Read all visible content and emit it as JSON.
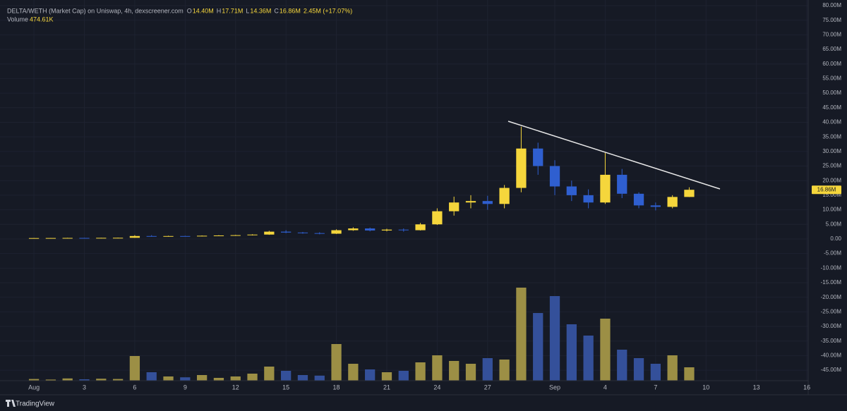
{
  "chart_data": {
    "type": "candlestick",
    "title": "DELTA/WETH (Market Cap) on Uniswap, 4h, dexscreener.com",
    "ohlc_legend": [
      {
        "key": "O",
        "text": "14.40M"
      },
      {
        "key": "H",
        "text": "17.71M"
      },
      {
        "key": "L",
        "text": "14.36M"
      },
      {
        "key": "C",
        "text": "16.86M"
      }
    ],
    "change_text": "2.45M (+17.07%)",
    "volume_legend": {
      "name": "Volume",
      "text": "474.61K"
    },
    "last_price_label": "16.86M",
    "brand": "TradingView",
    "x": [
      0,
      1,
      2,
      3,
      4,
      5,
      6,
      7,
      8,
      9,
      10,
      11,
      12,
      13,
      14,
      15,
      16,
      17,
      18,
      19,
      20,
      21,
      22,
      23,
      24,
      25,
      26,
      27,
      28,
      29,
      30,
      31,
      32,
      33,
      34,
      35,
      36,
      37,
      38,
      39
    ],
    "open": [
      0.3,
      0.3,
      0.32,
      0.35,
      0.33,
      0.38,
      0.4,
      1.0,
      0.9,
      1.0,
      0.95,
      1.1,
      1.2,
      1.3,
      1.5,
      2.5,
      2.2,
      2.0,
      1.8,
      3.0,
      3.6,
      2.9,
      3.2,
      3.0,
      5.0,
      9.5,
      12.5,
      13.0,
      12.0,
      17.5,
      31,
      25,
      18,
      15,
      12.5,
      22,
      15.5,
      11.5,
      11,
      14.4
    ],
    "high": [
      0.35,
      0.35,
      0.4,
      0.4,
      0.4,
      0.45,
      1.3,
      1.3,
      1.1,
      1.1,
      1.2,
      1.3,
      1.4,
      1.6,
      2.8,
      3.0,
      2.4,
      2.3,
      3.3,
      4.0,
      3.9,
      3.5,
      3.6,
      5.5,
      10.5,
      14.5,
      15.0,
      14.8,
      18.5,
      38.5,
      33,
      27,
      20,
      17,
      29.5,
      24,
      16,
      12.5,
      15,
      17.71
    ],
    "low": [
      0.25,
      0.25,
      0.28,
      0.3,
      0.3,
      0.33,
      0.38,
      0.8,
      0.8,
      0.9,
      0.9,
      1.0,
      1.1,
      1.2,
      1.4,
      2.0,
      1.8,
      1.6,
      1.7,
      2.8,
      2.6,
      2.6,
      2.5,
      2.9,
      4.8,
      8.0,
      10.5,
      10.0,
      10.5,
      16,
      22,
      15,
      13,
      10.5,
      12,
      14,
      10.5,
      9.8,
      10.5,
      14.36
    ],
    "close": [
      0.3,
      0.32,
      0.35,
      0.33,
      0.38,
      0.4,
      1.0,
      0.9,
      1.0,
      0.95,
      1.1,
      1.2,
      1.3,
      1.5,
      2.5,
      2.2,
      2.0,
      1.8,
      3.0,
      3.6,
      2.9,
      3.2,
      3.0,
      5.0,
      9.5,
      12.5,
      13.0,
      12.0,
      17.5,
      31,
      25,
      18,
      15,
      12.5,
      22,
      15.5,
      11.5,
      11,
      14.4,
      16.86
    ],
    "volume": [
      60,
      40,
      80,
      50,
      70,
      60,
      875,
      300,
      150,
      120,
      200,
      100,
      150,
      250,
      500,
      350,
      200,
      180,
      1300,
      600,
      400,
      300,
      350,
      650,
      900,
      700,
      600,
      800,
      750,
      3300,
      2400,
      3000,
      2000,
      1600,
      2200,
      1100,
      800,
      600,
      900,
      474.61
    ],
    "up_color": "#f5d63c",
    "down_color": "#2f5fd0",
    "volume_up_color": "#9c8f45",
    "volume_down_color": "#34509a",
    "xlim": [
      -2.02,
      46.08
    ],
    "xticks": [
      {
        "value": 0,
        "label": "Aug"
      },
      3,
      6,
      9,
      12,
      15,
      18,
      21,
      24,
      27,
      {
        "value": 31,
        "label": "Sep"
      },
      {
        "value": 34,
        "label": "4"
      },
      {
        "value": 37,
        "label": "7"
      },
      {
        "value": 40,
        "label": "10"
      },
      {
        "value": 43,
        "label": "13"
      },
      {
        "value": 46,
        "label": "16"
      }
    ],
    "ylim": [
      -48.6,
      81.93
    ],
    "yticks": [
      {
        "value": 80,
        "label": "80.00M"
      },
      {
        "value": 75,
        "label": "75.00M"
      },
      {
        "value": 70,
        "label": "70.00M"
      },
      {
        "value": 65,
        "label": "65.00M"
      },
      {
        "value": 60,
        "label": "60.00M"
      },
      {
        "value": 55,
        "label": "55.00M"
      },
      {
        "value": 50,
        "label": "50.00M"
      },
      {
        "value": 45,
        "label": "45.00M"
      },
      {
        "value": 40,
        "label": "40.00M"
      },
      {
        "value": 35,
        "label": "35.00M"
      },
      {
        "value": 30,
        "label": "30.00M"
      },
      {
        "value": 25,
        "label": "25.00M"
      },
      {
        "value": 20,
        "label": "20.00M"
      },
      {
        "value": 15,
        "label": "15.00M"
      },
      {
        "value": 10,
        "label": "10.00M"
      },
      {
        "value": 5,
        "label": "5.00M"
      },
      {
        "value": 0,
        "label": "0.00"
      },
      {
        "value": -5,
        "label": "-5.00M"
      },
      {
        "value": -10,
        "label": "-10.00M"
      },
      {
        "value": -15,
        "label": "-15.00M"
      },
      {
        "value": -20,
        "label": "-20.00M"
      },
      {
        "value": -25,
        "label": "-25.00M"
      },
      {
        "value": -30,
        "label": "-30.00M"
      },
      {
        "value": -35,
        "label": "-35.00M"
      },
      {
        "value": -40,
        "label": "-40.00M"
      },
      {
        "value": -45,
        "label": "-45.00M"
      }
    ],
    "grid": true
  }
}
